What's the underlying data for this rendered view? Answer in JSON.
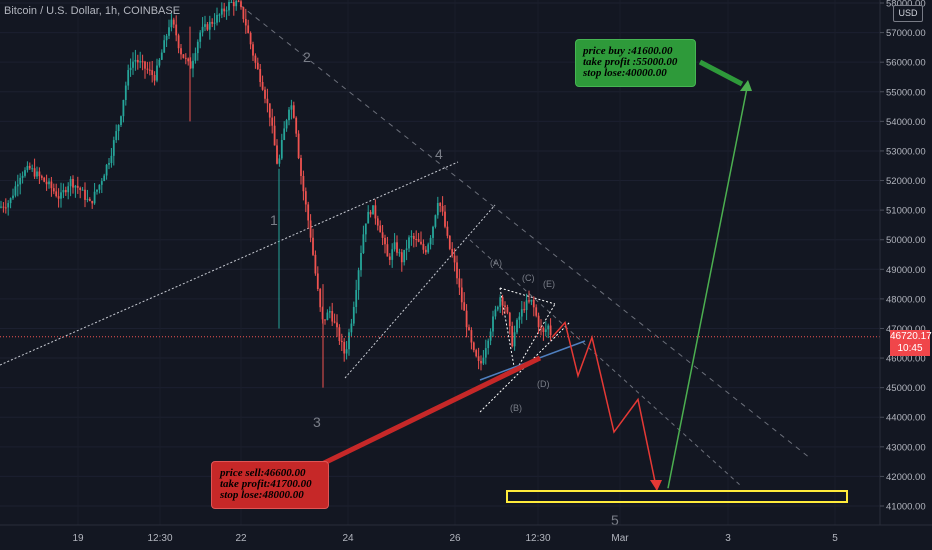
{
  "title": "Bitcoin / U.S. Dollar, 1h, COINBASE",
  "currency": "USD",
  "current_price": "46720.17",
  "countdown": "10:45",
  "sell_box": [
    "price sell:46600.00",
    "take profit:41700.00",
    "stop lose:48000.00"
  ],
  "buy_box": [
    "price buy :41600.00",
    "take profit :55000.00",
    "stop lose:40000.00"
  ],
  "wave_labels": [
    "1",
    "2",
    "3",
    "4",
    "5",
    "(A)",
    "(B)",
    "(C)",
    "(D)",
    "(E)"
  ],
  "colors": {
    "background": "#131722",
    "up": "#26a69a",
    "down": "#ef5350",
    "sell": "#c62828",
    "buy": "#2e9a3a",
    "target_box": "#ffeb3b",
    "projection_down": "#e53935",
    "projection_up": "#4caf50"
  },
  "chart_data": {
    "type": "candlestick",
    "title": "Bitcoin / U.S. Dollar, 1h, COINBASE",
    "x_tick_labels": [
      "19",
      "12:30",
      "22",
      "24",
      "26",
      "12:30",
      "Mar",
      "3",
      "5"
    ],
    "y_tick_labels": [
      "41000.00",
      "42000.00",
      "43000.00",
      "44000.00",
      "45000.00",
      "46000.00",
      "47000.00",
      "48000.00",
      "49000.00",
      "50000.00",
      "51000.00",
      "52000.00",
      "53000.00",
      "54000.00",
      "55000.00",
      "56000.00",
      "57000.00",
      "58000.00"
    ],
    "ylim": [
      40500,
      58100
    ],
    "price_path": [
      [
        0,
        51100
      ],
      [
        10,
        51300
      ],
      [
        20,
        52200
      ],
      [
        30,
        52400
      ],
      [
        40,
        52100
      ],
      [
        50,
        51800
      ],
      [
        60,
        51400
      ],
      [
        70,
        52000
      ],
      [
        80,
        51700
      ],
      [
        90,
        51200
      ],
      [
        100,
        51900
      ],
      [
        110,
        52800
      ],
      [
        120,
        54100
      ],
      [
        125,
        55100
      ],
      [
        130,
        55900
      ],
      [
        135,
        56100
      ],
      [
        145,
        55800
      ],
      [
        155,
        55500
      ],
      [
        165,
        56700
      ],
      [
        170,
        57400
      ],
      [
        175,
        57100
      ],
      [
        180,
        56400
      ],
      [
        190,
        55800
      ],
      [
        200,
        57000
      ],
      [
        210,
        57300
      ],
      [
        220,
        57600
      ],
      [
        230,
        58000
      ],
      [
        238,
        58000
      ],
      [
        245,
        57400
      ],
      [
        255,
        56000
      ],
      [
        262,
        55300
      ],
      [
        270,
        54200
      ],
      [
        278,
        52400
      ],
      [
        283,
        53500
      ],
      [
        290,
        54700
      ],
      [
        295,
        54100
      ],
      [
        300,
        52400
      ],
      [
        305,
        51300
      ],
      [
        310,
        50300
      ],
      [
        316,
        48700
      ],
      [
        322,
        47200
      ],
      [
        330,
        47600
      ],
      [
        338,
        46800
      ],
      [
        345,
        46100
      ],
      [
        352,
        47400
      ],
      [
        358,
        48900
      ],
      [
        365,
        50600
      ],
      [
        372,
        51100
      ],
      [
        380,
        50400
      ],
      [
        388,
        49300
      ],
      [
        395,
        49800
      ],
      [
        402,
        49300
      ],
      [
        410,
        50100
      ],
      [
        418,
        49900
      ],
      [
        425,
        49600
      ],
      [
        432,
        50300
      ],
      [
        438,
        51400
      ],
      [
        443,
        50800
      ],
      [
        448,
        49900
      ],
      [
        455,
        49100
      ],
      [
        460,
        48200
      ],
      [
        467,
        47100
      ],
      [
        473,
        46200
      ],
      [
        480,
        45700
      ],
      [
        487,
        46600
      ],
      [
        494,
        47400
      ],
      [
        500,
        48100
      ],
      [
        506,
        47700
      ],
      [
        512,
        46500
      ],
      [
        518,
        47300
      ],
      [
        525,
        47800
      ],
      [
        532,
        47900
      ],
      [
        538,
        47200
      ],
      [
        543,
        46800
      ],
      [
        548,
        47100
      ],
      [
        552,
        46700
      ]
    ],
    "projection_down": [
      [
        552,
        46700
      ],
      [
        565,
        47200
      ],
      [
        578,
        45400
      ],
      [
        592,
        46700
      ],
      [
        614,
        43500
      ],
      [
        638,
        44600
      ],
      [
        657,
        41500
      ]
    ],
    "projection_up": [
      [
        668,
        41600
      ],
      [
        748,
        55300
      ]
    ],
    "target_zone": [
      41300,
      41500
    ],
    "current_price_line": 46720.17
  }
}
